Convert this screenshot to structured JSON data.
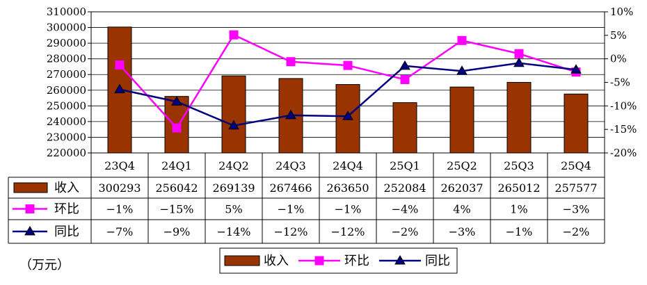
{
  "unit_label": "（万元）",
  "chart_data": {
    "type": "bar",
    "categories": [
      "23Q4",
      "24Q1",
      "24Q2",
      "24Q3",
      "24Q4",
      "25Q1",
      "25Q2",
      "25Q3",
      "25Q4"
    ],
    "ylim": [
      220000,
      310000
    ],
    "y2lim": [
      -20,
      10
    ],
    "y_ticks": [
      "220000",
      "230000",
      "240000",
      "250000",
      "260000",
      "270000",
      "280000",
      "290000",
      "300000",
      "310000"
    ],
    "y2_ticks": [
      "-20%",
      "-15%",
      "-10%",
      "-5%",
      "0%",
      "5%",
      "10%"
    ],
    "grid": true,
    "legend": "bottom",
    "series": [
      {
        "name": "收入",
        "type": "bar",
        "axis": "left",
        "color": "#993300",
        "values": [
          300293,
          256042,
          269139,
          267466,
          263650,
          252084,
          262037,
          265012,
          257577
        ],
        "labels": [
          "300293",
          "256042",
          "269139",
          "267466",
          "263650",
          "252084",
          "262037",
          "265012",
          "257577"
        ]
      },
      {
        "name": "环比",
        "type": "line",
        "axis": "right",
        "color": "#ff00ff",
        "marker": "square",
        "values": [
          -1.3,
          -14.7,
          5.1,
          -0.6,
          -1.4,
          -4.4,
          3.9,
          1.1,
          -2.8
        ],
        "labels": [
          "−1%",
          "−15%",
          "5%",
          "−1%",
          "−1%",
          "−4%",
          "4%",
          "1%",
          "−3%"
        ]
      },
      {
        "name": "同比",
        "type": "line",
        "axis": "right",
        "color": "#000080",
        "marker": "triangle",
        "values": [
          -6.5,
          -9.1,
          -14.2,
          -12.0,
          -12.2,
          -1.5,
          -2.6,
          -0.9,
          -2.3
        ],
        "labels": [
          "−7%",
          "−9%",
          "−14%",
          "−12%",
          "−12%",
          "−2%",
          "−3%",
          "−1%",
          "−2%"
        ]
      }
    ]
  }
}
